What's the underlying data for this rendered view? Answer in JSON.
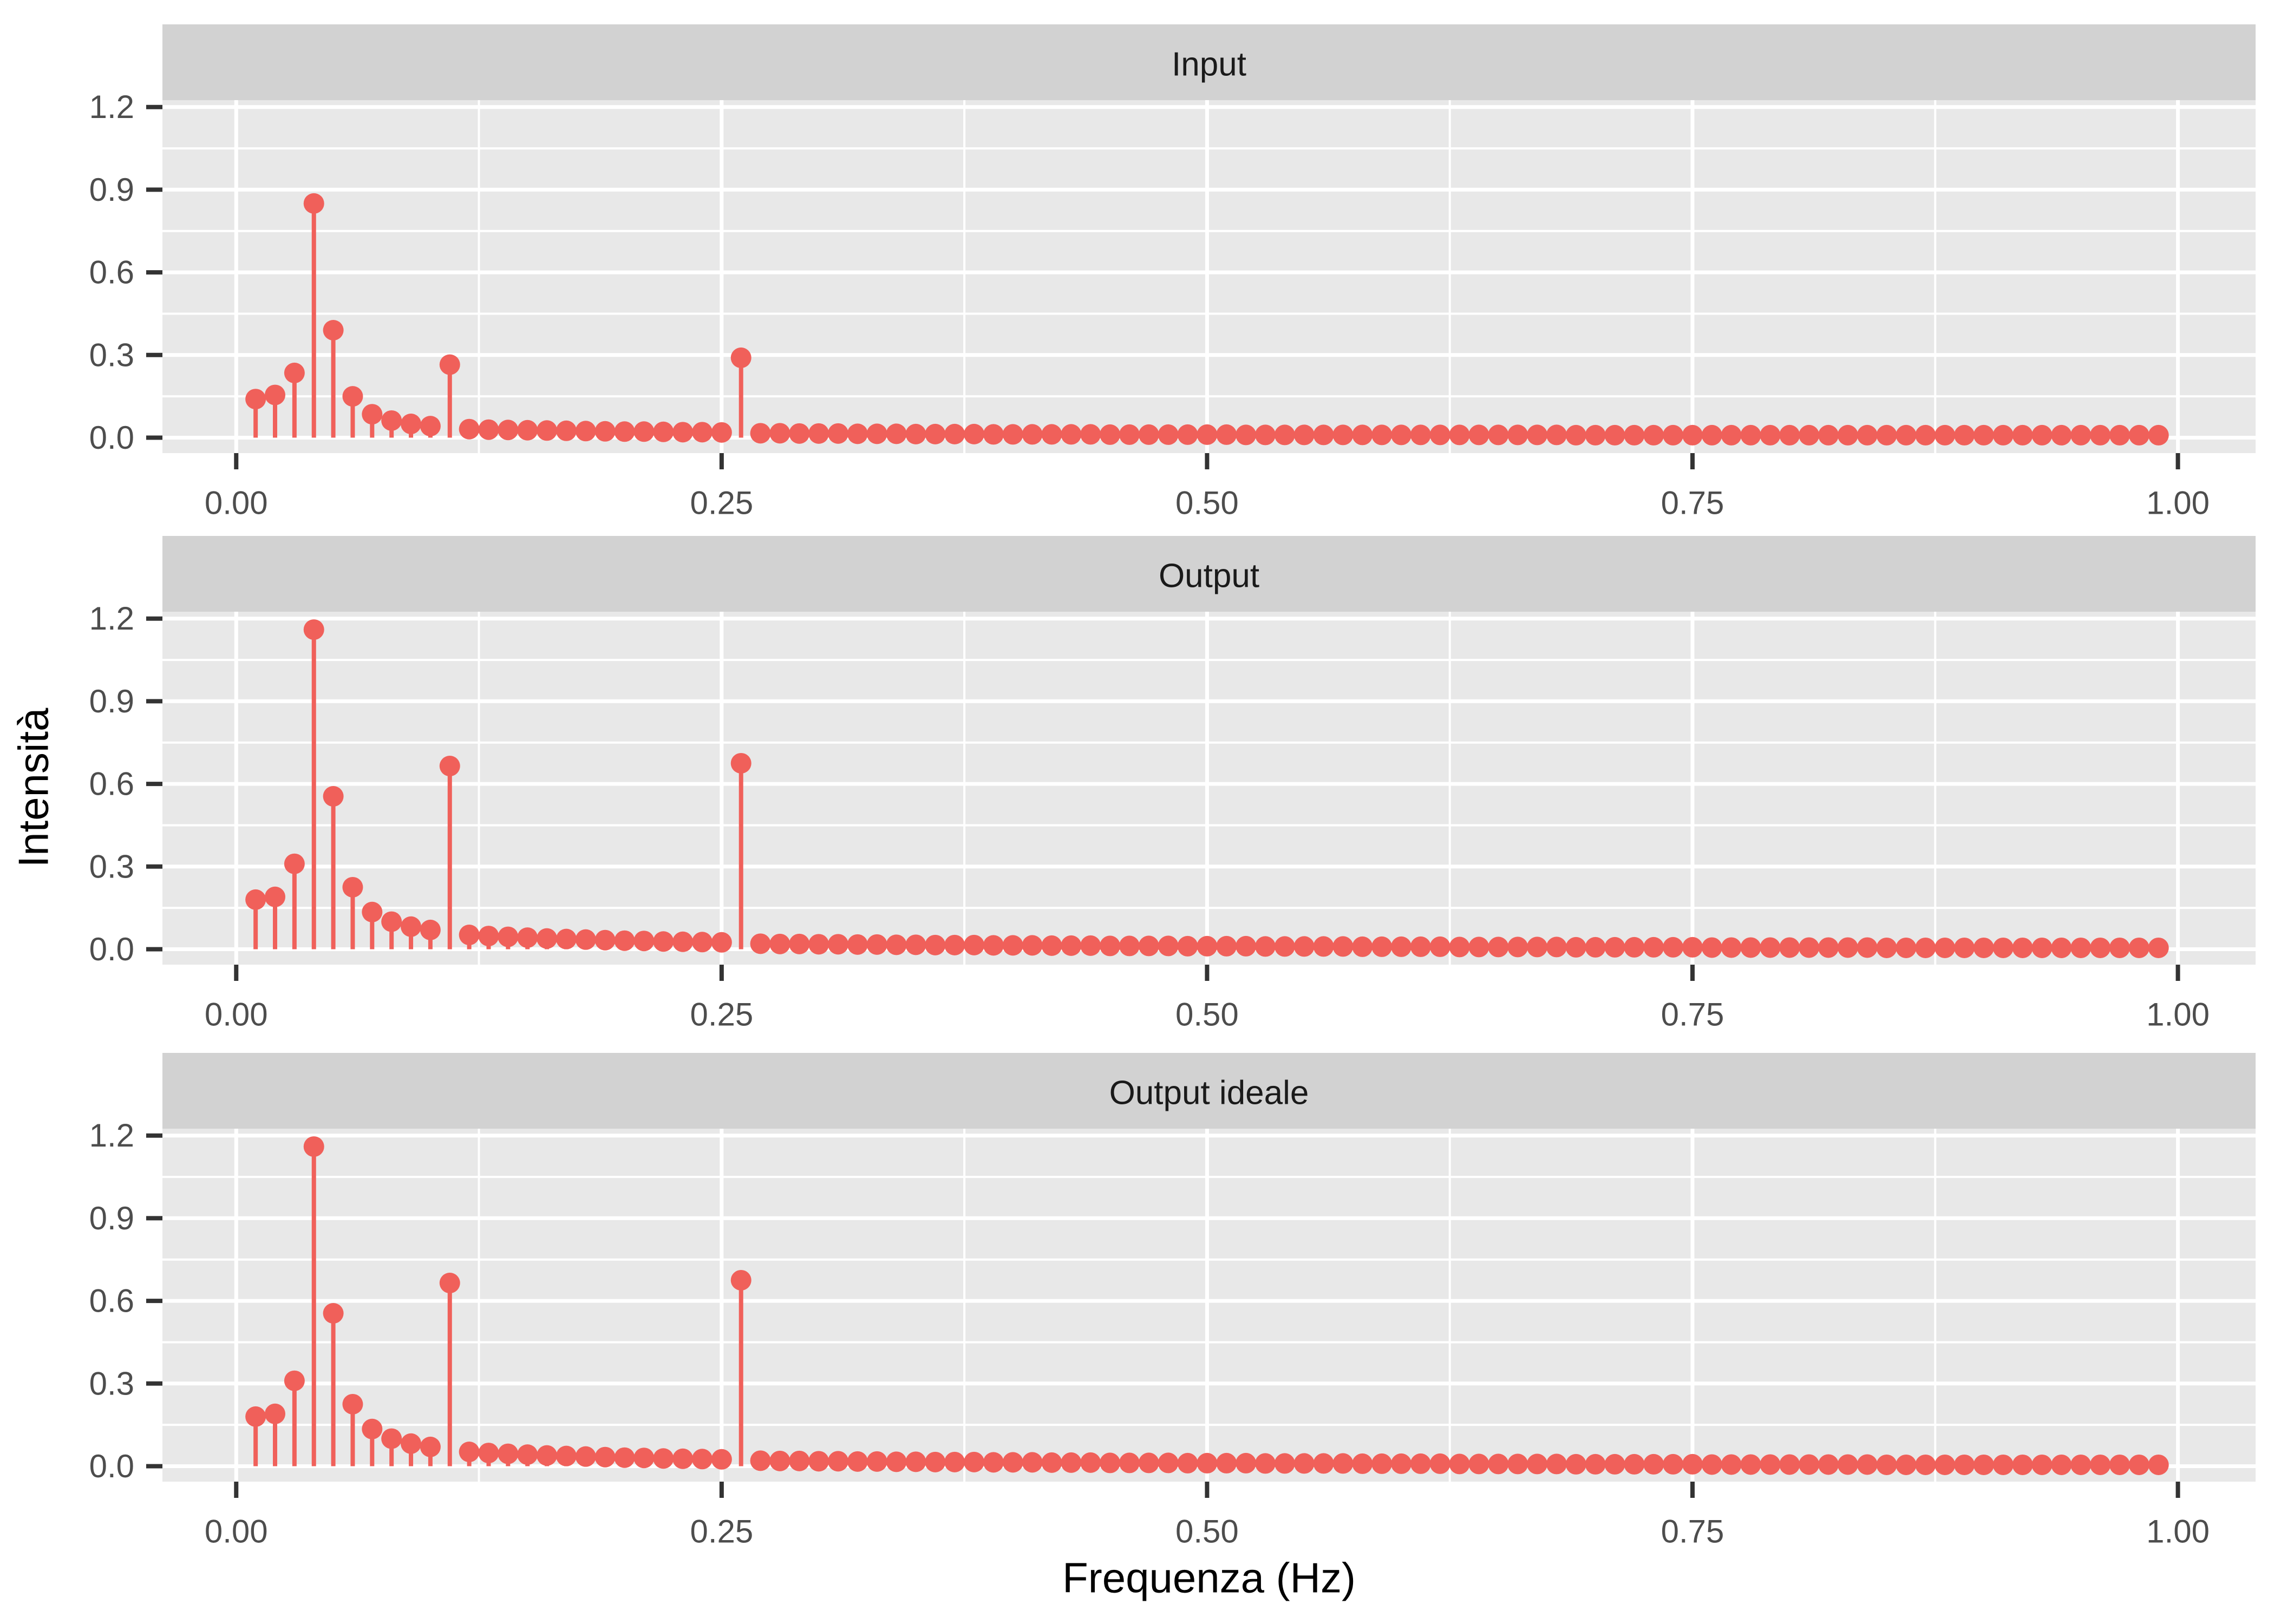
{
  "figure": {
    "y_axis_title": "Intensità",
    "x_axis_title": "Frequenza (Hz)",
    "facet_labels": [
      "Input",
      "Output",
      "Output ideale"
    ],
    "x_tick_labels": [
      "0.00",
      "0.25",
      "0.50",
      "0.75",
      "1.00"
    ],
    "x_tick_values": [
      0,
      0.25,
      0.5,
      0.75,
      1.0
    ],
    "x_minor_values": [
      0.125,
      0.375,
      0.625,
      0.875
    ],
    "y_tick_labels": [
      "0.0",
      "0.3",
      "0.6",
      "0.9",
      "1.2"
    ],
    "y_tick_values": [
      0,
      0.3,
      0.6,
      0.9,
      1.2
    ],
    "y_minor_values": [
      0.15,
      0.45,
      0.75,
      1.05
    ],
    "colors": {
      "point": "#F0605A",
      "stem": "#F0605A",
      "panel_background": "#E8E8E8",
      "strip_background": "#D2D2D2",
      "gridline": "#FFFFFF",
      "tick_mark": "#333333",
      "tick_label_text": "#4D4D4D",
      "strip_text": "#1A1A1A",
      "axis_title_text": "#000000"
    }
  },
  "chart_data": {
    "type": "scatter",
    "variant": "stem-lollipop",
    "title": "",
    "xlabel": "Frequenza (Hz)",
    "ylabel": "Intensità",
    "facets": [
      "Input",
      "Output",
      "Output ideale"
    ],
    "xlim": [
      -0.038,
      1.04
    ],
    "ylim": [
      -0.056,
      1.225
    ],
    "x_ticks": [
      0,
      0.25,
      0.5,
      0.75,
      1.0
    ],
    "y_ticks": [
      0,
      0.3,
      0.6,
      0.9,
      1.2
    ],
    "grid": "white major and minor gridlines on gray panel",
    "legend": "none",
    "x": [
      0.01,
      0.02,
      0.03,
      0.04,
      0.05,
      0.06,
      0.07,
      0.08,
      0.09,
      0.1,
      0.11,
      0.12,
      0.13,
      0.14,
      0.15,
      0.16,
      0.17,
      0.18,
      0.19,
      0.2,
      0.21,
      0.22,
      0.23,
      0.24,
      0.25,
      0.26,
      0.27,
      0.28,
      0.29,
      0.3,
      0.31,
      0.32,
      0.33,
      0.34,
      0.35,
      0.36,
      0.37,
      0.38,
      0.39,
      0.4,
      0.41,
      0.42,
      0.43,
      0.44,
      0.45,
      0.46,
      0.47,
      0.48,
      0.49,
      0.5,
      0.51,
      0.52,
      0.53,
      0.54,
      0.55,
      0.56,
      0.57,
      0.58,
      0.59,
      0.6,
      0.61,
      0.62,
      0.63,
      0.64,
      0.65,
      0.66,
      0.67,
      0.68,
      0.69,
      0.7,
      0.71,
      0.72,
      0.73,
      0.74,
      0.75,
      0.76,
      0.77,
      0.78,
      0.79,
      0.8,
      0.81,
      0.82,
      0.83,
      0.84,
      0.85,
      0.86,
      0.87,
      0.88,
      0.89,
      0.9,
      0.91,
      0.92,
      0.93,
      0.94,
      0.95,
      0.96,
      0.97,
      0.98,
      0.99
    ],
    "series": [
      {
        "name": "Input",
        "values": [
          0.14,
          0.155,
          0.235,
          0.85,
          0.39,
          0.15,
          0.085,
          0.062,
          0.05,
          0.042,
          0.265,
          0.031,
          0.029,
          0.028,
          0.027,
          0.026,
          0.025,
          0.024,
          0.023,
          0.022,
          0.022,
          0.021,
          0.02,
          0.02,
          0.019,
          0.29,
          0.016,
          0.016,
          0.015,
          0.015,
          0.015,
          0.014,
          0.014,
          0.014,
          0.013,
          0.013,
          0.013,
          0.013,
          0.012,
          0.012,
          0.012,
          0.012,
          0.012,
          0.012,
          0.011,
          0.011,
          0.011,
          0.011,
          0.011,
          0.011,
          0.011,
          0.01,
          0.01,
          0.01,
          0.01,
          0.01,
          0.01,
          0.01,
          0.01,
          0.01,
          0.01,
          0.01,
          0.01,
          0.01,
          0.01,
          0.01,
          0.01,
          0.01,
          0.009,
          0.009,
          0.009,
          0.009,
          0.009,
          0.009,
          0.009,
          0.009,
          0.009,
          0.009,
          0.009,
          0.009,
          0.009,
          0.009,
          0.009,
          0.009,
          0.009,
          0.009,
          0.009,
          0.009,
          0.009,
          0.009,
          0.009,
          0.009,
          0.009,
          0.009,
          0.009,
          0.009,
          0.009,
          0.009,
          0.009
        ]
      },
      {
        "name": "Output",
        "values": [
          0.18,
          0.19,
          0.31,
          1.16,
          0.555,
          0.225,
          0.135,
          0.1,
          0.082,
          0.07,
          0.665,
          0.052,
          0.048,
          0.045,
          0.042,
          0.039,
          0.037,
          0.035,
          0.033,
          0.031,
          0.03,
          0.028,
          0.027,
          0.026,
          0.025,
          0.675,
          0.02,
          0.019,
          0.019,
          0.018,
          0.018,
          0.017,
          0.017,
          0.016,
          0.016,
          0.015,
          0.015,
          0.015,
          0.014,
          0.014,
          0.014,
          0.013,
          0.013,
          0.013,
          0.012,
          0.012,
          0.012,
          0.012,
          0.011,
          0.011,
          0.011,
          0.011,
          0.01,
          0.01,
          0.01,
          0.01,
          0.01,
          0.009,
          0.009,
          0.009,
          0.009,
          0.009,
          0.008,
          0.008,
          0.008,
          0.008,
          0.008,
          0.008,
          0.007,
          0.007,
          0.007,
          0.007,
          0.007,
          0.007,
          0.007,
          0.006,
          0.006,
          0.006,
          0.006,
          0.006,
          0.006,
          0.006,
          0.006,
          0.006,
          0.005,
          0.005,
          0.005,
          0.005,
          0.005,
          0.005,
          0.005,
          0.005,
          0.005,
          0.005,
          0.005,
          0.005,
          0.005,
          0.005,
          0.005
        ]
      },
      {
        "name": "Output ideale",
        "values": [
          0.18,
          0.19,
          0.31,
          1.16,
          0.555,
          0.225,
          0.135,
          0.1,
          0.082,
          0.07,
          0.665,
          0.052,
          0.048,
          0.045,
          0.042,
          0.039,
          0.037,
          0.035,
          0.033,
          0.031,
          0.03,
          0.028,
          0.027,
          0.026,
          0.025,
          0.675,
          0.02,
          0.019,
          0.019,
          0.018,
          0.018,
          0.017,
          0.017,
          0.016,
          0.016,
          0.015,
          0.015,
          0.015,
          0.014,
          0.014,
          0.014,
          0.013,
          0.013,
          0.013,
          0.012,
          0.012,
          0.012,
          0.012,
          0.011,
          0.011,
          0.011,
          0.011,
          0.01,
          0.01,
          0.01,
          0.01,
          0.01,
          0.009,
          0.009,
          0.009,
          0.009,
          0.009,
          0.008,
          0.008,
          0.008,
          0.008,
          0.008,
          0.008,
          0.007,
          0.007,
          0.007,
          0.007,
          0.007,
          0.007,
          0.007,
          0.006,
          0.006,
          0.006,
          0.006,
          0.006,
          0.006,
          0.006,
          0.006,
          0.006,
          0.005,
          0.005,
          0.005,
          0.005,
          0.005,
          0.005,
          0.005,
          0.005,
          0.005,
          0.005,
          0.005,
          0.005,
          0.005,
          0.005,
          0.005
        ]
      }
    ]
  }
}
